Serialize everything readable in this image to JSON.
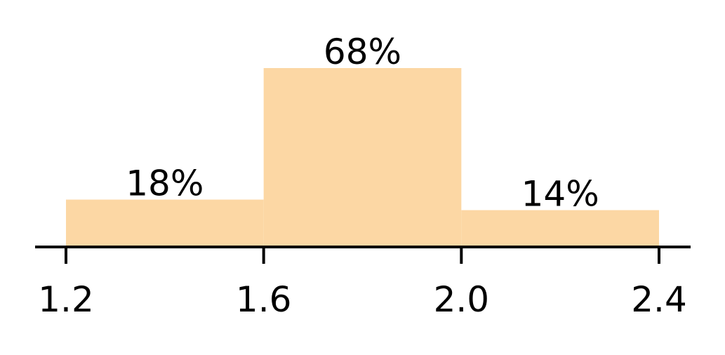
{
  "chart_data": {
    "type": "bar",
    "bins": [
      {
        "x0": 1.2,
        "x1": 1.6,
        "value": 18,
        "label": "18%"
      },
      {
        "x0": 1.6,
        "x1": 2.0,
        "value": 68,
        "label": "68%"
      },
      {
        "x0": 2.0,
        "x1": 2.4,
        "value": 14,
        "label": "14%"
      }
    ],
    "xticks": [
      1.2,
      1.6,
      2.0,
      2.4
    ],
    "xtick_labels": [
      "1.2",
      "1.6",
      "2.0",
      "2.4"
    ],
    "xlim": [
      1.2,
      2.4
    ],
    "ylim": [
      0,
      68
    ],
    "title": "",
    "xlabel": "",
    "ylabel": "",
    "grid": false,
    "bar_color": "#FCD7A4",
    "axis_color": "#000000"
  }
}
